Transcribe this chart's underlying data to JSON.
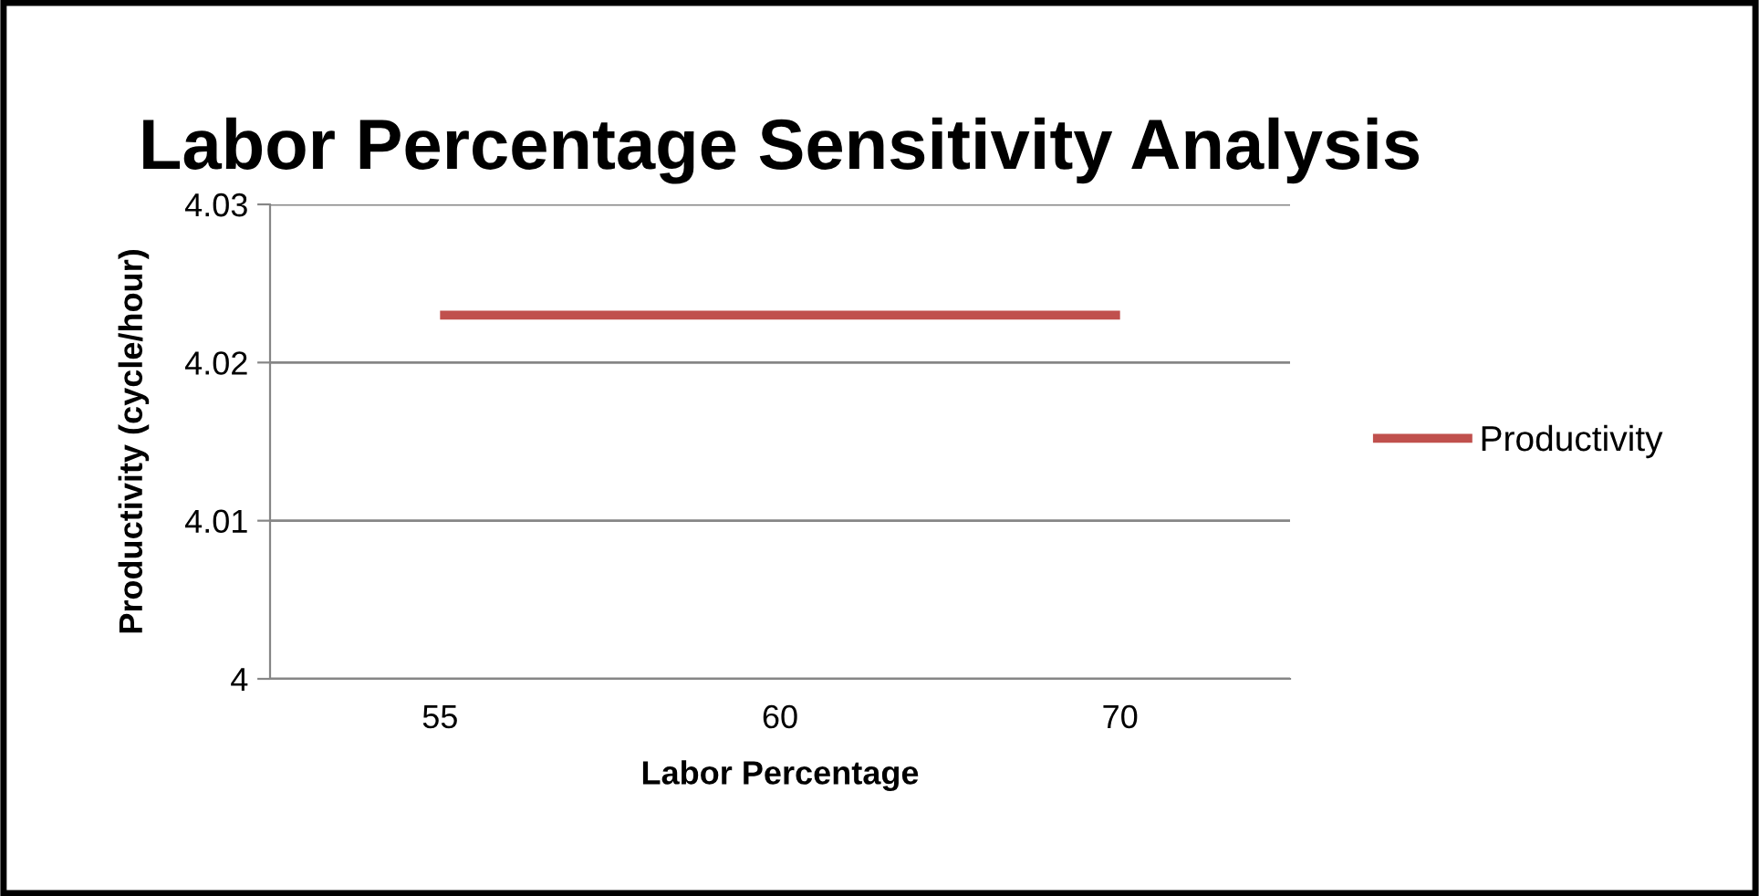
{
  "chart_data": {
    "type": "line",
    "title": "Labor Percentage Sensitivity Analysis",
    "xlabel": "Labor Percentage",
    "ylabel": "Productivity (cycle/hour)",
    "categories": [
      "55",
      "60",
      "70"
    ],
    "series": [
      {
        "name": "Productivity",
        "color": "#c0504d",
        "values": [
          4.023,
          4.023,
          4.023
        ]
      }
    ],
    "ylim": [
      4,
      4.03
    ],
    "yticks": [
      4,
      4.01,
      4.02,
      4.03
    ],
    "grid": "y",
    "legend": "right",
    "marker": "none",
    "line_style": "solid"
  }
}
